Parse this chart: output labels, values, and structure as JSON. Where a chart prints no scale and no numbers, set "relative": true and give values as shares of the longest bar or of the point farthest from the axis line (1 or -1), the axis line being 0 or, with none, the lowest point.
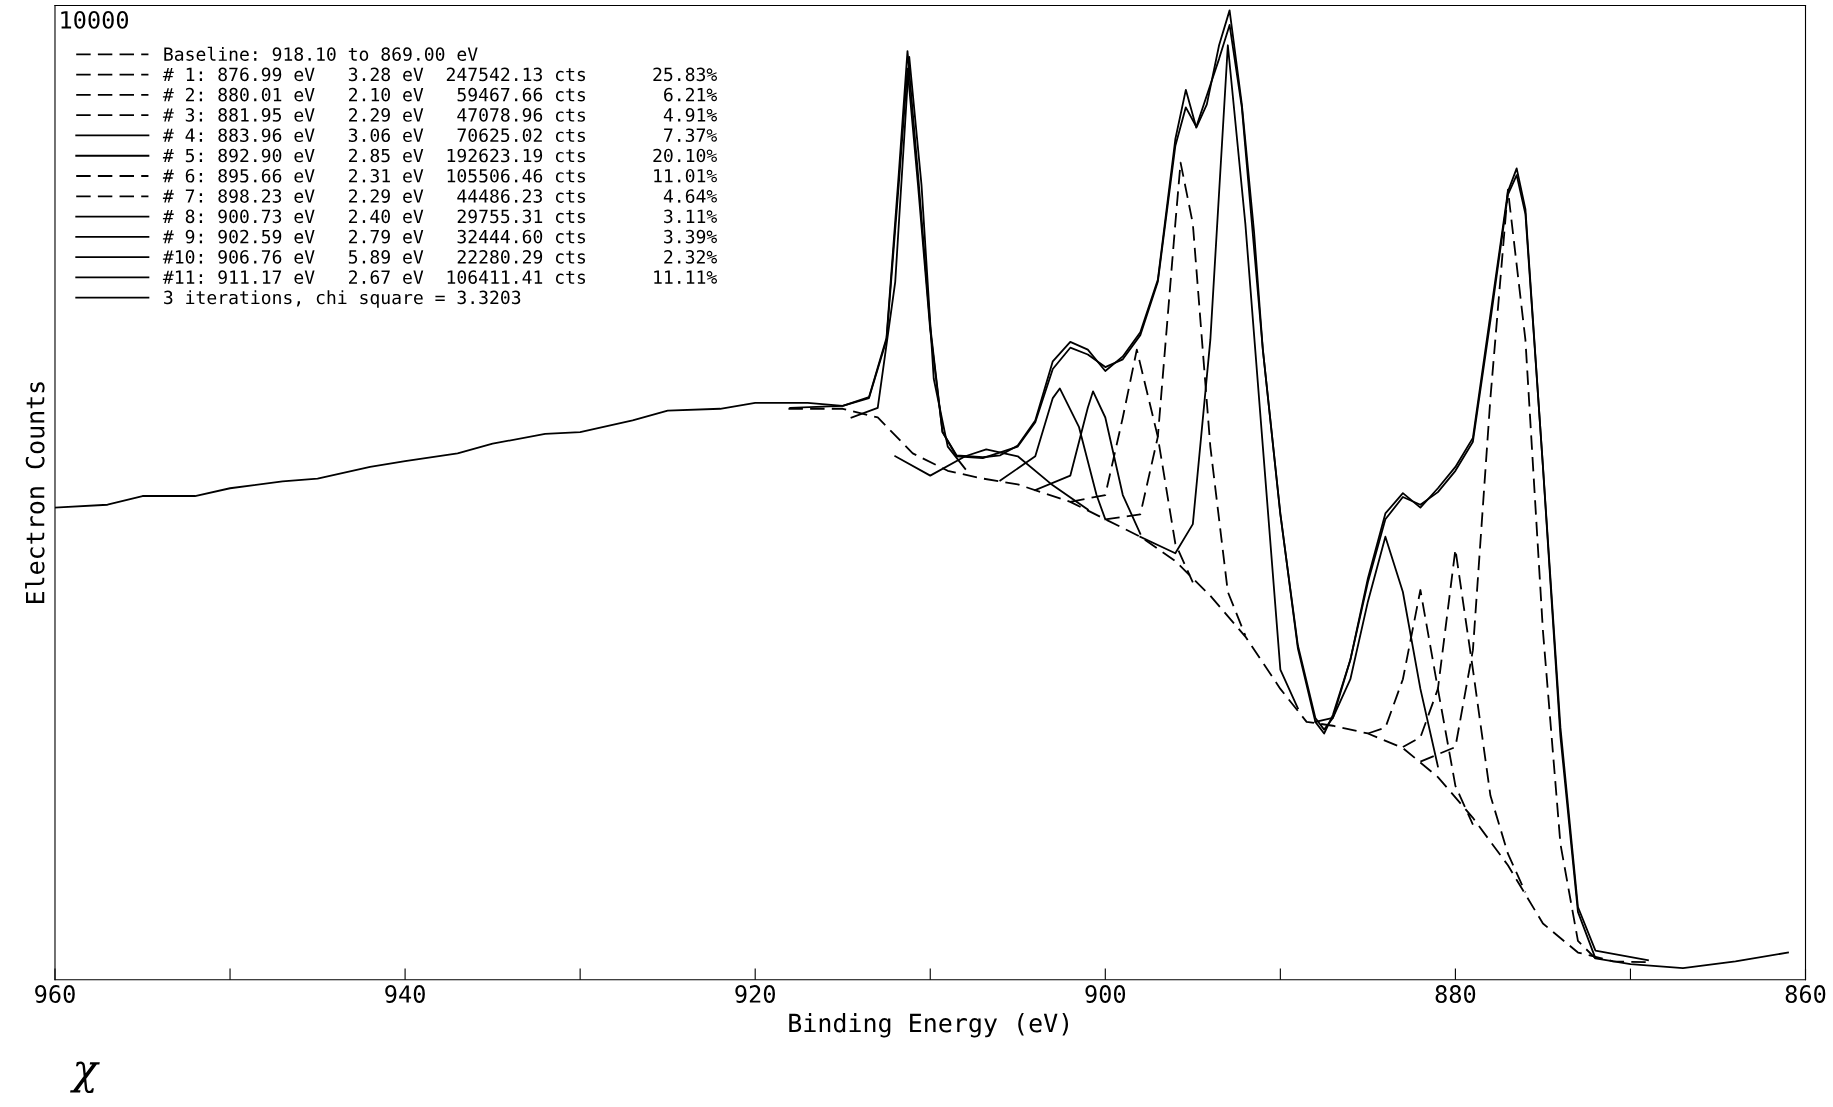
{
  "chart_data": {
    "type": "line",
    "relative": true,
    "xlabel": "Binding Energy (eV)",
    "ylabel": "Electron Counts",
    "xlim": [
      960,
      860
    ],
    "xticks": [
      960,
      {
        "value": 950,
        "label": null
      },
      940,
      {
        "value": 930,
        "label": null
      },
      920,
      {
        "value": 910,
        "label": null
      },
      900,
      {
        "value": 890,
        "label": null
      },
      880,
      {
        "value": 870,
        "label": null
      },
      860
    ],
    "grid": false,
    "legend": "top left",
    "marker": "none",
    "annotations": [
      "10000",
      "χ"
    ],
    "series": [
      {
        "color": "#000000",
        "line_style": "solid",
        "x": [
          960,
          957,
          955,
          952,
          950,
          947,
          945,
          942,
          940,
          937,
          935,
          932,
          930,
          927,
          925,
          922,
          920,
          917,
          915,
          913.5,
          912.5,
          911.8,
          911.3,
          910.7,
          910,
          909.3,
          908.5,
          907,
          906,
          905,
          904,
          903,
          902,
          901,
          900,
          899,
          898,
          897,
          896,
          895.4,
          894.8,
          894.2,
          893.5,
          892.9,
          892.2,
          891.5,
          891,
          890,
          889,
          888,
          887.5,
          887,
          886,
          885,
          884,
          883,
          882,
          881,
          880,
          879,
          878,
          877,
          876.5,
          876,
          875,
          874,
          873,
          872,
          870,
          867,
          864,
          861
        ],
        "values": [
          0.487,
          0.49,
          0.499,
          0.499,
          0.507,
          0.514,
          0.517,
          0.529,
          0.535,
          0.543,
          0.553,
          0.563,
          0.565,
          0.577,
          0.587,
          0.589,
          0.595,
          0.595,
          0.592,
          0.601,
          0.662,
          0.831,
          0.958,
          0.831,
          0.674,
          0.565,
          0.541,
          0.539,
          0.541,
          0.551,
          0.577,
          0.638,
          0.658,
          0.65,
          0.628,
          0.643,
          0.668,
          0.722,
          0.867,
          0.918,
          0.879,
          0.903,
          0.964,
          1.0,
          0.903,
          0.771,
          0.65,
          0.481,
          0.342,
          0.266,
          0.254,
          0.273,
          0.33,
          0.414,
          0.481,
          0.502,
          0.487,
          0.507,
          0.529,
          0.559,
          0.686,
          0.813,
          0.837,
          0.795,
          0.529,
          0.251,
          0.07,
          0.022,
          0.016,
          0.012,
          0.019,
          0.028
        ]
      },
      {
        "name": "Baseline: 918.10 to 869.00 eV",
        "color": "#000000",
        "line_style": "dashed",
        "x": [
          918.1,
          915,
          913,
          911,
          909,
          907,
          905,
          902,
          900,
          898,
          896,
          894,
          892,
          890,
          888.5,
          887,
          885,
          883,
          881,
          879,
          877,
          875,
          873,
          871,
          869
        ],
        "values": [
          0.589,
          0.589,
          0.58,
          0.543,
          0.525,
          0.517,
          0.511,
          0.493,
          0.475,
          0.457,
          0.432,
          0.396,
          0.354,
          0.3,
          0.266,
          0.262,
          0.254,
          0.239,
          0.209,
          0.167,
          0.118,
          0.058,
          0.028,
          0.019,
          0.018
        ]
      },
      {
        "name": "# 1: 876.99 eV   3.28 eV  247542.13 cts      25.83%",
        "color": "#000000",
        "line_style": "dashed",
        "x": [
          882,
          880,
          879,
          878,
          877,
          876,
          875,
          874,
          873,
          872
        ],
        "values": [
          0.225,
          0.24,
          0.34,
          0.6,
          0.815,
          0.66,
          0.36,
          0.14,
          0.04,
          0.022
        ]
      },
      {
        "name": "# 2: 880.01 eV   2.10 eV   59467.66 cts       6.21%",
        "color": "#000000",
        "line_style": "dashed",
        "x": [
          883,
          882,
          881,
          880,
          879,
          878,
          877,
          876
        ],
        "values": [
          0.24,
          0.25,
          0.3,
          0.444,
          0.32,
          0.19,
          0.13,
          0.09
        ]
      },
      {
        "name": "# 3: 881.95 eV   2.29 eV   47078.96 cts       4.91%",
        "color": "#000000",
        "line_style": "dashed",
        "x": [
          885,
          884,
          883,
          882,
          881,
          880,
          879
        ],
        "values": [
          0.254,
          0.26,
          0.31,
          0.402,
          0.3,
          0.2,
          0.16
        ]
      },
      {
        "name": "# 4: 883.96 eV   3.06 eV   70625.02 cts       7.37%",
        "color": "#000000",
        "line_style": "solid",
        "x": [
          888,
          887,
          886,
          885,
          884,
          883,
          882,
          881
        ],
        "values": [
          0.266,
          0.27,
          0.31,
          0.39,
          0.457,
          0.4,
          0.3,
          0.22
        ]
      },
      {
        "name": "# 5: 892.90 eV   2.85 eV  192623.19 cts      20.10%",
        "color": "#000000",
        "line_style": "solid",
        "x": [
          898,
          896,
          895,
          894,
          893,
          892,
          891,
          890,
          889
        ],
        "values": [
          0.457,
          0.44,
          0.47,
          0.66,
          0.964,
          0.78,
          0.55,
          0.32,
          0.28
        ]
      },
      {
        "name": "# 6: 895.66 eV   2.31 eV  105506.46 cts      11.01%",
        "color": "#000000",
        "line_style": "dashed",
        "x": [
          900,
          898,
          897,
          896,
          895.7,
          895,
          894,
          893,
          892
        ],
        "values": [
          0.475,
          0.48,
          0.56,
          0.78,
          0.843,
          0.78,
          0.55,
          0.4,
          0.355
        ]
      },
      {
        "name": "# 7: 898.23 eV   2.29 eV   44486.23 cts       4.64%",
        "color": "#000000",
        "line_style": "dashed",
        "x": [
          902,
          900,
          899,
          898.2,
          897,
          896,
          895
        ],
        "values": [
          0.493,
          0.5,
          0.58,
          0.65,
          0.56,
          0.45,
          0.41
        ]
      },
      {
        "name": "# 8: 900.73 eV   2.40 eV   29755.31 cts       3.11%",
        "color": "#000000",
        "line_style": "solid",
        "x": [
          904,
          902,
          901,
          900.7,
          900,
          899,
          898
        ],
        "values": [
          0.505,
          0.52,
          0.59,
          0.607,
          0.58,
          0.5,
          0.46
        ]
      },
      {
        "name": "# 9: 902.59 eV   2.79 eV   32444.60 cts       3.39%",
        "color": "#000000",
        "line_style": "solid",
        "x": [
          906,
          904,
          903,
          902.6,
          901.5,
          900.5,
          900
        ],
        "values": [
          0.515,
          0.54,
          0.6,
          0.61,
          0.57,
          0.5,
          0.475
        ]
      },
      {
        "name": "#10: 906.76 eV   5.89 eV   22280.29 cts       2.32%",
        "color": "#000000",
        "line_style": "solid",
        "x": [
          912,
          910,
          908,
          906.8,
          905,
          903,
          901
        ],
        "values": [
          0.54,
          0.52,
          0.54,
          0.547,
          0.54,
          0.51,
          0.485
        ]
      },
      {
        "name": "#11: 911.17 eV   2.67 eV  106411.41 cts      11.11%",
        "color": "#000000",
        "line_style": "solid",
        "x": [
          914.5,
          913,
          912,
          911.2,
          910.5,
          909.8,
          909,
          908
        ],
        "values": [
          0.58,
          0.59,
          0.72,
          0.952,
          0.82,
          0.62,
          0.55,
          0.527
        ]
      },
      {
        "name": "3 iterations, chi square = 3.3203",
        "color": "#000000",
        "line_style": "solid",
        "x": [
          918,
          915,
          913.5,
          912.5,
          911.8,
          911.3,
          910.7,
          910,
          909.3,
          908.5,
          907,
          905,
          904,
          903,
          902,
          901,
          900,
          899,
          898,
          897,
          896,
          895.4,
          894.8,
          893.5,
          892.9,
          892.2,
          891,
          890,
          889,
          888,
          887.5,
          887,
          886,
          885,
          884,
          883,
          882,
          881,
          880,
          879,
          878,
          877,
          876.5,
          876,
          875,
          874,
          873,
          872,
          869
        ],
        "values": [
          0.59,
          0.592,
          0.6,
          0.66,
          0.82,
          0.94,
          0.82,
          0.67,
          0.565,
          0.54,
          0.538,
          0.55,
          0.575,
          0.63,
          0.652,
          0.645,
          0.632,
          0.64,
          0.665,
          0.72,
          0.86,
          0.9,
          0.88,
          0.95,
          0.985,
          0.9,
          0.65,
          0.48,
          0.345,
          0.27,
          0.258,
          0.27,
          0.33,
          0.41,
          0.475,
          0.498,
          0.49,
          0.503,
          0.525,
          0.555,
          0.68,
          0.81,
          0.83,
          0.79,
          0.53,
          0.26,
          0.075,
          0.03,
          0.02
        ]
      }
    ]
  }
}
